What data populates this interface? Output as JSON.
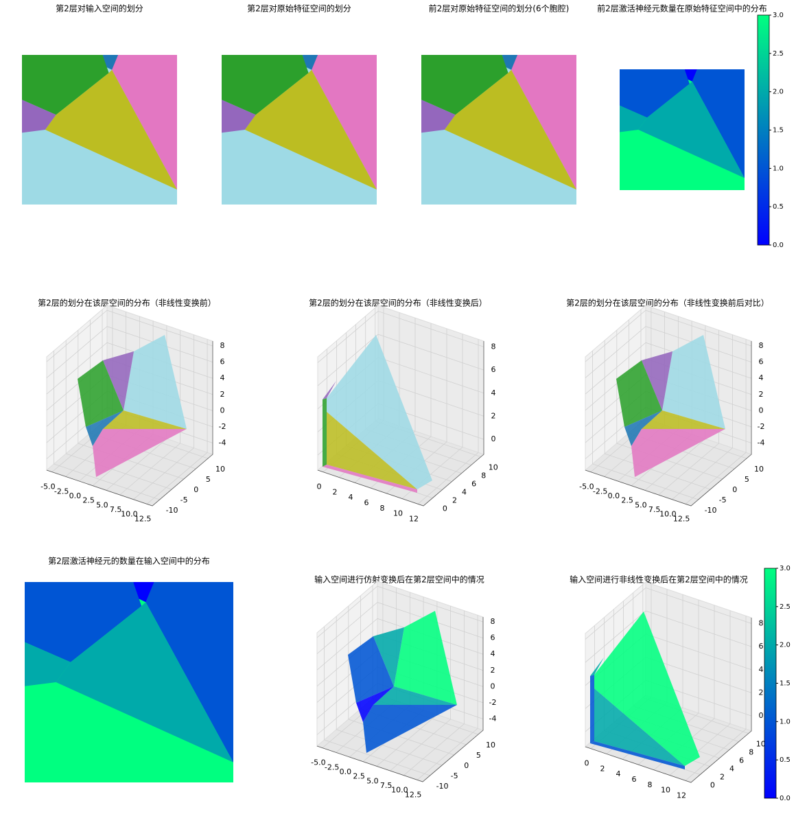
{
  "chart_data": [
    {
      "type": "region",
      "title": "第2层对输入空间的划分",
      "colors": [
        "#9edae5",
        "#bcbd22",
        "#2ca02c",
        "#9467bd",
        "#1f77b4",
        "#e377c2"
      ]
    },
    {
      "type": "region",
      "title": "第2层对原始特征空间的划分",
      "colors": [
        "#9edae5",
        "#bcbd22",
        "#2ca02c",
        "#9467bd",
        "#1f77b4",
        "#e377c2"
      ]
    },
    {
      "type": "region",
      "title": "前2层对原始特征空间的划分(6个胞腔)",
      "colors": [
        "#9edae5",
        "#bcbd22",
        "#2ca02c",
        "#9467bd",
        "#1f77b4",
        "#e377c2"
      ]
    },
    {
      "type": "region",
      "title": "前2层激活神经元数量在原始特征空间中的分布",
      "colors": [
        "#00ff80",
        "#00aaaa",
        "#0055d4",
        "#00aaaa",
        "#0000ff",
        "#0055d4"
      ]
    },
    {
      "type": "surface3d",
      "title": "第2层的划分在该层空间的分布（非线性变换前）",
      "colors": [
        "#9edae5",
        "#bcbd22",
        "#2ca02c",
        "#9467bd",
        "#1f77b4",
        "#e377c2"
      ],
      "xlim": [
        -6,
        13.5
      ],
      "ylim": [
        -13,
        12
      ],
      "zlim": [
        -5.4,
        8.6
      ],
      "xticks": [
        {
          "value": -5,
          "label": "-5.0"
        },
        {
          "value": -2.5,
          "label": "-2.5"
        },
        {
          "value": 0,
          "label": "0.0"
        },
        {
          "value": 2.5,
          "label": "2.5"
        },
        {
          "value": 5,
          "label": "5.0"
        },
        {
          "value": 7.5,
          "label": "7.5"
        },
        {
          "value": 10,
          "label": "10.0"
        },
        {
          "value": 12.5,
          "label": "12.5"
        }
      ],
      "yticks": [
        -10,
        -5,
        0,
        5,
        10
      ],
      "zticks": [
        -4,
        -2,
        0,
        2,
        4,
        6,
        8
      ]
    },
    {
      "type": "surface3d",
      "title": "第2层的划分在该层空间的分布（非线性变换后）",
      "colors": [
        "#9edae5",
        "#bcbd22",
        "#2ca02c",
        "#9467bd",
        "#1f77b4",
        "#e377c2"
      ],
      "xlim": [
        -0.7,
        12.7
      ],
      "ylim": [
        -1.9,
        10.6
      ],
      "zlim": [
        -1.3,
        8.5
      ],
      "xticks": [
        0,
        2,
        4,
        6,
        8,
        10,
        12
      ],
      "yticks": [
        0,
        2,
        4,
        6,
        8,
        10
      ],
      "zticks": [
        0,
        2,
        4,
        6,
        8
      ]
    },
    {
      "type": "surface3d",
      "title": "第2层的划分在该层空间的分布（非线性变换前后对比）",
      "colors": [
        "#9edae5",
        "#bcbd22",
        "#2ca02c",
        "#9467bd",
        "#1f77b4",
        "#e377c2"
      ],
      "xlim": [
        -6,
        13.5
      ],
      "ylim": [
        -13,
        12
      ],
      "zlim": [
        -5.4,
        8.6
      ],
      "xticks": [
        {
          "value": -5,
          "label": "-5.0"
        },
        {
          "value": -2.5,
          "label": "-2.5"
        },
        {
          "value": 0,
          "label": "0.0"
        },
        {
          "value": 2.5,
          "label": "2.5"
        },
        {
          "value": 5,
          "label": "5.0"
        },
        {
          "value": 7.5,
          "label": "7.5"
        },
        {
          "value": 10,
          "label": "10.0"
        },
        {
          "value": 12.5,
          "label": "12.5"
        }
      ],
      "yticks": [
        -10,
        -5,
        0,
        5,
        10
      ],
      "zticks": [
        -4,
        -2,
        0,
        2,
        4,
        6,
        8
      ]
    },
    {
      "type": "region",
      "title": "第2层激活神经元的数量在输入空间中的分布",
      "colors": [
        "#00ff80",
        "#00aaaa",
        "#0055d4",
        "#00aaaa",
        "#0000ff",
        "#0055d4"
      ]
    },
    {
      "type": "surface3d",
      "title": "输入空间进行仿射变换后在第2层空间中的情况",
      "colors": [
        "#00ff80",
        "#00aaaa",
        "#0055d4",
        "#00aaaa",
        "#0000ff",
        "#0055d4"
      ],
      "xlim": [
        -6,
        13.5
      ],
      "ylim": [
        -13,
        12
      ],
      "zlim": [
        -5.4,
        8.6
      ],
      "xticks": [
        {
          "value": -5,
          "label": "-5.0"
        },
        {
          "value": -2.5,
          "label": "-2.5"
        },
        {
          "value": 0,
          "label": "0.0"
        },
        {
          "value": 2.5,
          "label": "2.5"
        },
        {
          "value": 5,
          "label": "5.0"
        },
        {
          "value": 7.5,
          "label": "7.5"
        },
        {
          "value": 10,
          "label": "10.0"
        },
        {
          "value": 12.5,
          "label": "12.5"
        }
      ],
      "yticks": [
        -10,
        -5,
        0,
        5,
        10
      ],
      "zticks": [
        -4,
        -2,
        0,
        2,
        4,
        6,
        8
      ]
    },
    {
      "type": "surface3d",
      "title": "输入空间进行非线性变换后在第2层空间中的情况",
      "colors": [
        "#00ff80",
        "#00aaaa",
        "#0055d4",
        "#00aaaa",
        "#0000ff",
        "#0055d4"
      ],
      "xlim": [
        -0.7,
        12.7
      ],
      "ylim": [
        -1.9,
        10.6
      ],
      "zlim": [
        -1.3,
        8.5
      ],
      "xticks": [
        0,
        2,
        4,
        6,
        8,
        10,
        12
      ],
      "yticks": [
        0,
        2,
        4,
        6,
        8,
        10
      ],
      "zticks": [
        0,
        2,
        4,
        6,
        8
      ]
    },
    {
      "type": "colorbar",
      "colors": [
        "#0000ff",
        "#00ff80"
      ],
      "ylim": [
        0,
        3
      ],
      "yticks": [
        {
          "value": 0,
          "label": "0.0"
        },
        {
          "value": 0.5,
          "label": "0.5"
        },
        {
          "value": 1,
          "label": "1.0"
        },
        {
          "value": 1.5,
          "label": "1.5"
        },
        {
          "value": 2,
          "label": "2.0"
        },
        {
          "value": 2.5,
          "label": "2.5"
        },
        {
          "value": 3,
          "label": "3.0"
        }
      ]
    },
    {
      "type": "colorbar",
      "colors": [
        "#0000ff",
        "#00ff80"
      ],
      "ylim": [
        0,
        3
      ],
      "yticks": [
        {
          "value": 0,
          "label": "0.0"
        },
        {
          "value": 0.5,
          "label": "0.5"
        },
        {
          "value": 1,
          "label": "1.0"
        },
        {
          "value": 1.5,
          "label": "1.5"
        },
        {
          "value": 2,
          "label": "2.0"
        },
        {
          "value": 2.5,
          "label": "2.5"
        },
        {
          "value": 3,
          "label": "3.0"
        }
      ]
    }
  ]
}
